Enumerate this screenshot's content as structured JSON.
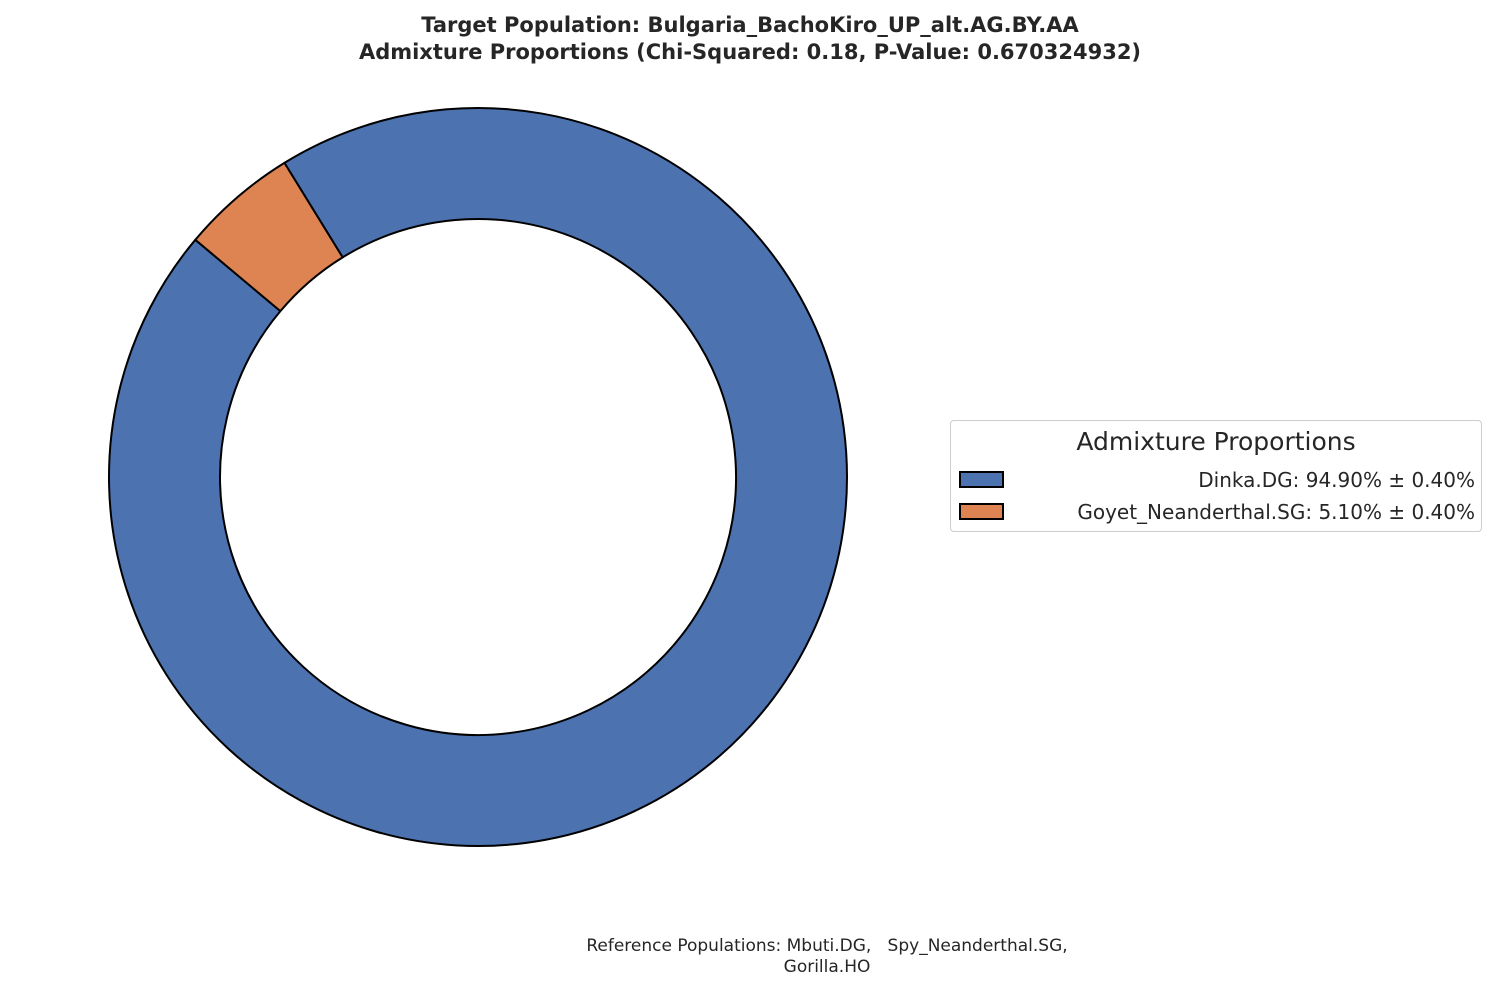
{
  "chart_data": {
    "type": "pie",
    "donut": true,
    "title_lines": [
      "Target Population: Bulgaria_BachoKiro_UP_alt.AG.BY.AA",
      "Admixture Proportions (Chi-Squared: 0.18, P-Value: 0.670324932)"
    ],
    "slices": [
      {
        "name": "Dinka.DG",
        "value": 94.9,
        "error": 0.4,
        "color": "#4c72b0",
        "legend_label": "Dinka.DG: 94.90% ± 0.40%"
      },
      {
        "name": "Goyet_Neanderthal.SG",
        "value": 5.1,
        "error": 0.4,
        "color": "#dd8452",
        "legend_label": "Goyet_Neanderthal.SG: 5.10% ± 0.40%"
      }
    ],
    "start_angle_deg": 140,
    "direction": "counterclockwise",
    "edge_color": "#000000",
    "legend": {
      "title": "Admixture Proportions",
      "placement": "center-right"
    },
    "footnote_lines": [
      "Reference Populations: Mbuti.DG,   Spy_Neanderthal.SG,",
      "Gorilla.HO"
    ]
  }
}
